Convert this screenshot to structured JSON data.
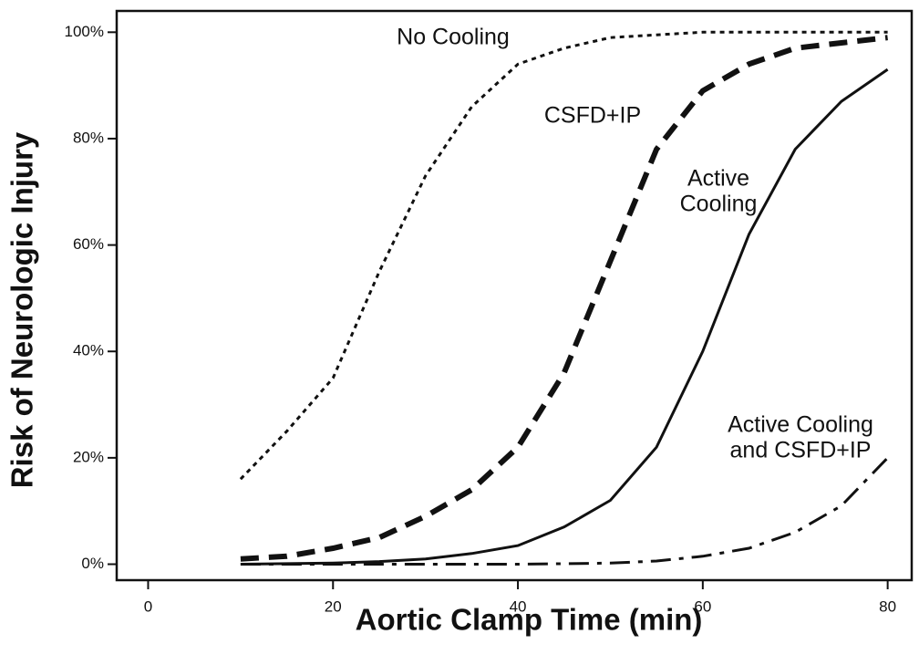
{
  "chart_data": {
    "type": "line",
    "xlabel": "Aortic Clamp Time (min)",
    "ylabel": "Risk of Neurologic Injury",
    "x": [
      10,
      15,
      20,
      25,
      30,
      35,
      40,
      45,
      50,
      55,
      60,
      65,
      70,
      75,
      80
    ],
    "series": [
      {
        "name": "No Cooling",
        "color": "#111111",
        "style": "dotted",
        "values": [
          16,
          25,
          35,
          55,
          73,
          86,
          94,
          97,
          99,
          99.5,
          100,
          100,
          100,
          100,
          100
        ]
      },
      {
        "name": "CSFD+IP",
        "color": "#111111",
        "style": "dashed",
        "values": [
          1,
          1.5,
          3,
          5,
          9,
          14,
          22,
          36,
          57,
          78,
          89,
          94,
          97,
          98,
          99
        ]
      },
      {
        "name": "Active Cooling",
        "color": "#111111",
        "style": "solid",
        "values": [
          0,
          0.1,
          0.2,
          0.5,
          1,
          2,
          3.5,
          7,
          12,
          22,
          40,
          62,
          78,
          87,
          93
        ]
      },
      {
        "name": "Active Cooling and CSFD+IP",
        "color": "#111111",
        "style": "dashdot",
        "values": [
          0,
          0,
          0,
          0,
          0,
          0,
          0,
          0.1,
          0.2,
          0.6,
          1.5,
          3,
          6,
          11,
          20
        ]
      }
    ],
    "annotations": [
      [
        "No Cooling"
      ],
      [
        "CSFD+IP"
      ],
      [
        "Active",
        "Cooling"
      ],
      [
        "Active Cooling",
        "and CSFD+IP"
      ]
    ],
    "xlim": [
      -3.4,
      82.6
    ],
    "xticks": [
      0,
      20,
      40,
      60,
      80
    ],
    "ylim": [
      -3,
      104
    ],
    "yticks": [
      {
        "value": 0,
        "label": "0%"
      },
      {
        "value": 20,
        "label": "20%"
      },
      {
        "value": 40,
        "label": "40%"
      },
      {
        "value": 60,
        "label": "60%"
      },
      {
        "value": 80,
        "label": "80%"
      },
      {
        "value": 100,
        "label": "100%"
      }
    ],
    "grid": false
  }
}
